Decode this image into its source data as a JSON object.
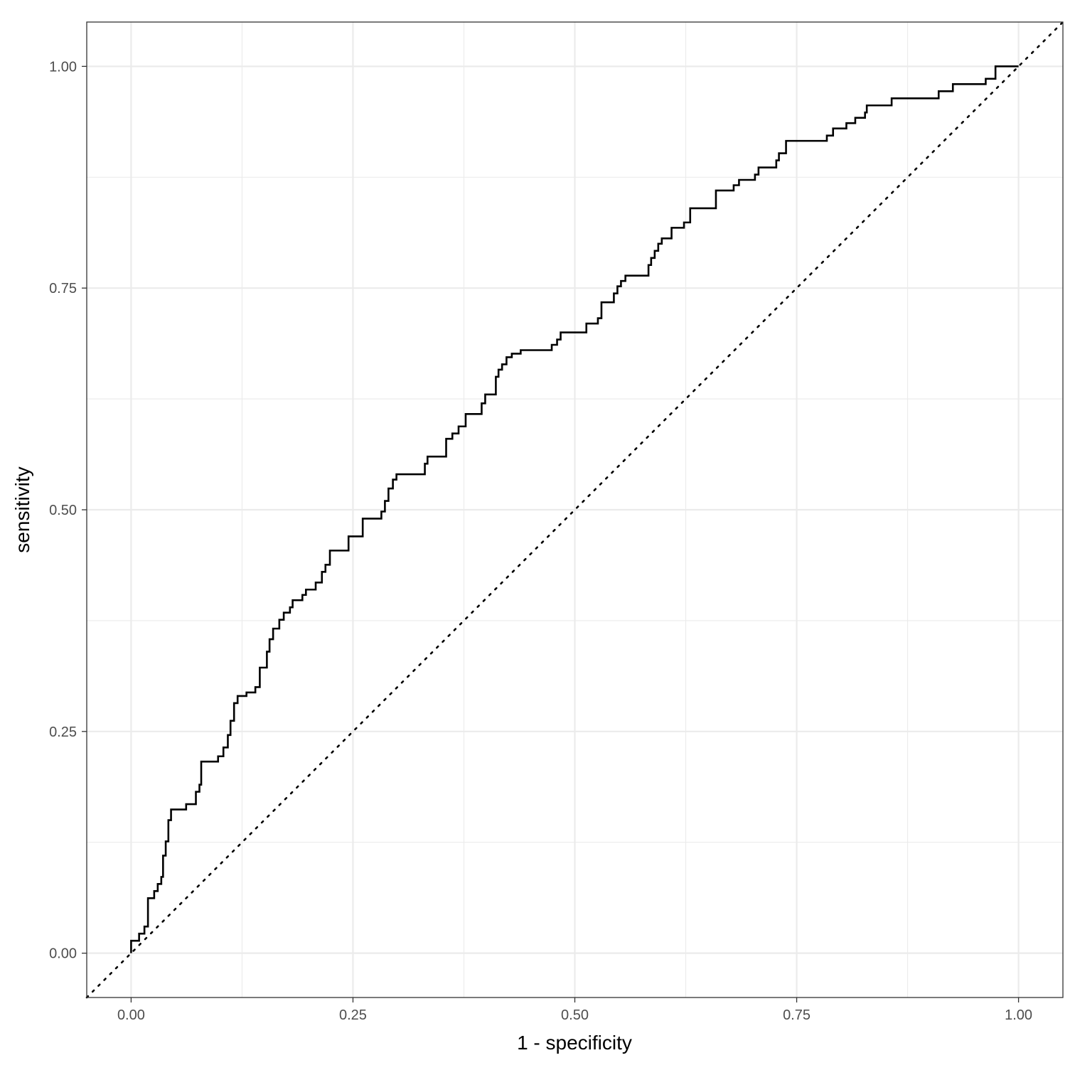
{
  "chart_data": {
    "type": "line",
    "title": "",
    "xlabel": "1 - specificity",
    "ylabel": "sensitivity",
    "xlim": [
      -0.05,
      1.05
    ],
    "ylim": [
      -0.05,
      1.05
    ],
    "x_ticks": [
      0,
      0.25,
      0.5,
      0.75,
      1
    ],
    "x_tick_labels": [
      "0.00",
      "0.25",
      "0.50",
      "0.75",
      "1.00"
    ],
    "y_ticks": [
      0,
      0.25,
      0.5,
      0.75,
      1
    ],
    "y_tick_labels": [
      "0.00",
      "0.25",
      "0.50",
      "0.75",
      "1.00"
    ],
    "x_minor_ticks": [
      0.125,
      0.375,
      0.625,
      0.875
    ],
    "y_minor_ticks": [
      0.125,
      0.375,
      0.625,
      0.875
    ],
    "grid": true,
    "legend": "none",
    "colors": {
      "line": "#000000",
      "grid": "#ebebeb",
      "panel_border": "#333333",
      "tick_label": "#4d4d4d"
    },
    "series": [
      {
        "kind": "roc-step",
        "points": [
          [
            0.0,
            0.0
          ],
          [
            0.0,
            0.014
          ],
          [
            0.009,
            0.014
          ],
          [
            0.009,
            0.022
          ],
          [
            0.015,
            0.022
          ],
          [
            0.015,
            0.03
          ],
          [
            0.019,
            0.03
          ],
          [
            0.019,
            0.062
          ],
          [
            0.026,
            0.062
          ],
          [
            0.026,
            0.07
          ],
          [
            0.03,
            0.07
          ],
          [
            0.03,
            0.078
          ],
          [
            0.034,
            0.078
          ],
          [
            0.034,
            0.086
          ],
          [
            0.036,
            0.086
          ],
          [
            0.036,
            0.11
          ],
          [
            0.039,
            0.11
          ],
          [
            0.039,
            0.126
          ],
          [
            0.042,
            0.126
          ],
          [
            0.042,
            0.15
          ],
          [
            0.045,
            0.15
          ],
          [
            0.045,
            0.162
          ],
          [
            0.062,
            0.162
          ],
          [
            0.062,
            0.168
          ],
          [
            0.073,
            0.168
          ],
          [
            0.073,
            0.182
          ],
          [
            0.077,
            0.182
          ],
          [
            0.077,
            0.19
          ],
          [
            0.079,
            0.19
          ],
          [
            0.079,
            0.216
          ],
          [
            0.098,
            0.216
          ],
          [
            0.098,
            0.222
          ],
          [
            0.104,
            0.222
          ],
          [
            0.104,
            0.232
          ],
          [
            0.109,
            0.232
          ],
          [
            0.109,
            0.246
          ],
          [
            0.112,
            0.246
          ],
          [
            0.112,
            0.262
          ],
          [
            0.116,
            0.262
          ],
          [
            0.116,
            0.282
          ],
          [
            0.12,
            0.282
          ],
          [
            0.12,
            0.29
          ],
          [
            0.13,
            0.29
          ],
          [
            0.13,
            0.294
          ],
          [
            0.14,
            0.294
          ],
          [
            0.14,
            0.3
          ],
          [
            0.145,
            0.3
          ],
          [
            0.145,
            0.322
          ],
          [
            0.153,
            0.322
          ],
          [
            0.153,
            0.34
          ],
          [
            0.156,
            0.34
          ],
          [
            0.156,
            0.354
          ],
          [
            0.16,
            0.354
          ],
          [
            0.16,
            0.366
          ],
          [
            0.167,
            0.366
          ],
          [
            0.167,
            0.376
          ],
          [
            0.172,
            0.376
          ],
          [
            0.172,
            0.384
          ],
          [
            0.179,
            0.384
          ],
          [
            0.179,
            0.39
          ],
          [
            0.182,
            0.39
          ],
          [
            0.182,
            0.398
          ],
          [
            0.193,
            0.398
          ],
          [
            0.193,
            0.404
          ],
          [
            0.197,
            0.404
          ],
          [
            0.197,
            0.41
          ],
          [
            0.208,
            0.41
          ],
          [
            0.208,
            0.418
          ],
          [
            0.215,
            0.418
          ],
          [
            0.215,
            0.43
          ],
          [
            0.219,
            0.43
          ],
          [
            0.219,
            0.438
          ],
          [
            0.224,
            0.438
          ],
          [
            0.224,
            0.454
          ],
          [
            0.245,
            0.454
          ],
          [
            0.245,
            0.47
          ],
          [
            0.261,
            0.47
          ],
          [
            0.261,
            0.49
          ],
          [
            0.282,
            0.49
          ],
          [
            0.282,
            0.498
          ],
          [
            0.286,
            0.498
          ],
          [
            0.286,
            0.51
          ],
          [
            0.29,
            0.51
          ],
          [
            0.29,
            0.524
          ],
          [
            0.295,
            0.524
          ],
          [
            0.295,
            0.534
          ],
          [
            0.299,
            0.534
          ],
          [
            0.299,
            0.54
          ],
          [
            0.331,
            0.54
          ],
          [
            0.331,
            0.552
          ],
          [
            0.334,
            0.552
          ],
          [
            0.334,
            0.56
          ],
          [
            0.355,
            0.56
          ],
          [
            0.355,
            0.58
          ],
          [
            0.362,
            0.58
          ],
          [
            0.362,
            0.586
          ],
          [
            0.369,
            0.586
          ],
          [
            0.369,
            0.594
          ],
          [
            0.377,
            0.594
          ],
          [
            0.377,
            0.608
          ],
          [
            0.395,
            0.608
          ],
          [
            0.395,
            0.62
          ],
          [
            0.399,
            0.62
          ],
          [
            0.399,
            0.63
          ],
          [
            0.411,
            0.63
          ],
          [
            0.411,
            0.65
          ],
          [
            0.414,
            0.65
          ],
          [
            0.414,
            0.658
          ],
          [
            0.418,
            0.658
          ],
          [
            0.418,
            0.664
          ],
          [
            0.423,
            0.664
          ],
          [
            0.423,
            0.672
          ],
          [
            0.429,
            0.672
          ],
          [
            0.429,
            0.676
          ],
          [
            0.439,
            0.676
          ],
          [
            0.439,
            0.68
          ],
          [
            0.474,
            0.68
          ],
          [
            0.474,
            0.686
          ],
          [
            0.48,
            0.686
          ],
          [
            0.48,
            0.692
          ],
          [
            0.484,
            0.692
          ],
          [
            0.484,
            0.7
          ],
          [
            0.513,
            0.7
          ],
          [
            0.513,
            0.71
          ],
          [
            0.526,
            0.71
          ],
          [
            0.526,
            0.716
          ],
          [
            0.53,
            0.716
          ],
          [
            0.53,
            0.734
          ],
          [
            0.544,
            0.734
          ],
          [
            0.544,
            0.744
          ],
          [
            0.548,
            0.744
          ],
          [
            0.548,
            0.752
          ],
          [
            0.552,
            0.752
          ],
          [
            0.552,
            0.758
          ],
          [
            0.557,
            0.758
          ],
          [
            0.557,
            0.764
          ],
          [
            0.583,
            0.764
          ],
          [
            0.583,
            0.776
          ],
          [
            0.586,
            0.776
          ],
          [
            0.586,
            0.784
          ],
          [
            0.59,
            0.784
          ],
          [
            0.59,
            0.792
          ],
          [
            0.594,
            0.792
          ],
          [
            0.594,
            0.8
          ],
          [
            0.598,
            0.8
          ],
          [
            0.598,
            0.806
          ],
          [
            0.609,
            0.806
          ],
          [
            0.609,
            0.818
          ],
          [
            0.623,
            0.818
          ],
          [
            0.623,
            0.824
          ],
          [
            0.63,
            0.824
          ],
          [
            0.63,
            0.84
          ],
          [
            0.659,
            0.84
          ],
          [
            0.659,
            0.86
          ],
          [
            0.679,
            0.86
          ],
          [
            0.679,
            0.866
          ],
          [
            0.685,
            0.866
          ],
          [
            0.685,
            0.872
          ],
          [
            0.703,
            0.872
          ],
          [
            0.703,
            0.878
          ],
          [
            0.707,
            0.878
          ],
          [
            0.707,
            0.886
          ],
          [
            0.727,
            0.886
          ],
          [
            0.727,
            0.894
          ],
          [
            0.73,
            0.894
          ],
          [
            0.73,
            0.902
          ],
          [
            0.738,
            0.902
          ],
          [
            0.738,
            0.916
          ],
          [
            0.784,
            0.916
          ],
          [
            0.784,
            0.922
          ],
          [
            0.791,
            0.922
          ],
          [
            0.791,
            0.93
          ],
          [
            0.806,
            0.93
          ],
          [
            0.806,
            0.936
          ],
          [
            0.816,
            0.936
          ],
          [
            0.816,
            0.942
          ],
          [
            0.827,
            0.942
          ],
          [
            0.827,
            0.948
          ],
          [
            0.829,
            0.948
          ],
          [
            0.829,
            0.956
          ],
          [
            0.857,
            0.956
          ],
          [
            0.857,
            0.964
          ],
          [
            0.91,
            0.964
          ],
          [
            0.91,
            0.972
          ],
          [
            0.926,
            0.972
          ],
          [
            0.926,
            0.98
          ],
          [
            0.963,
            0.98
          ],
          [
            0.963,
            0.986
          ],
          [
            0.974,
            0.986
          ],
          [
            0.974,
            1.0
          ],
          [
            1.0,
            1.0
          ]
        ]
      },
      {
        "kind": "diagonal-reference",
        "points": [
          [
            -0.05,
            -0.05
          ],
          [
            1.05,
            1.05
          ]
        ]
      }
    ]
  }
}
